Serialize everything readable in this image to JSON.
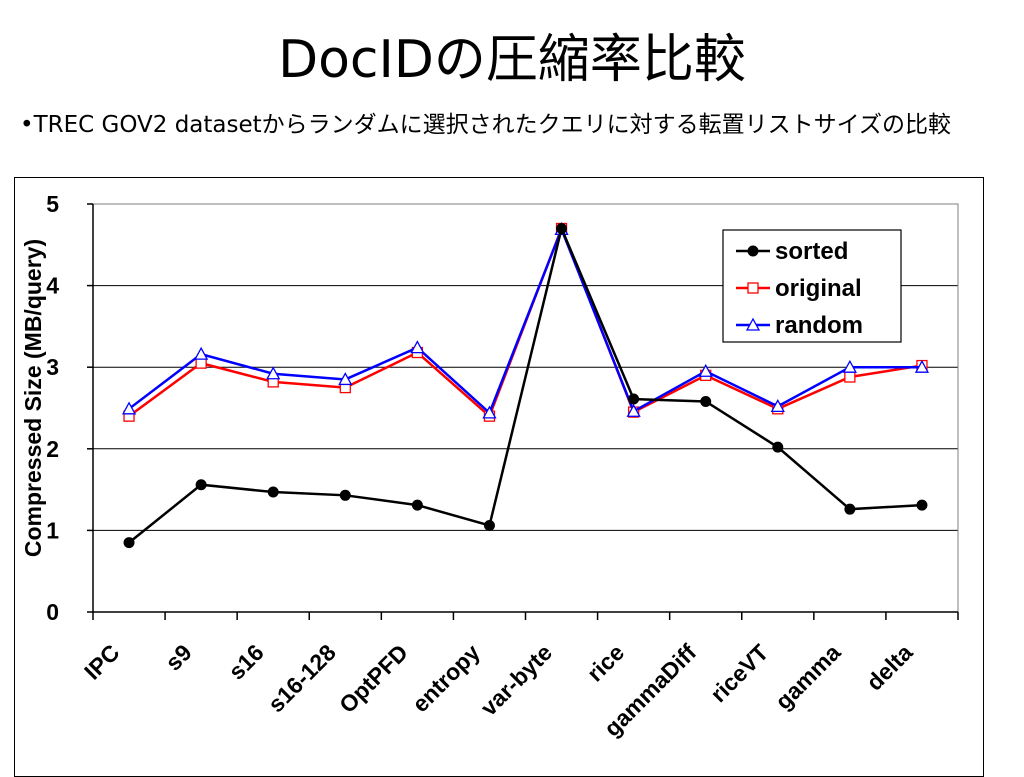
{
  "slide": {
    "title": "DocIDの圧縮率比較",
    "bullet": "•TREC GOV2 datasetからランダムに選択されたクエリに対する転置リストサイズの比較"
  },
  "chart_data": {
    "type": "line",
    "ylabel": "Compressed Size (MB/query)",
    "xlabel": "",
    "ylim": [
      0,
      5
    ],
    "yticks": [
      0,
      1,
      2,
      3,
      4,
      5
    ],
    "grid": true,
    "legend_position": "top-right",
    "categories": [
      "IPC",
      "s9",
      "s16",
      "s16-128",
      "OptPFD",
      "entropy",
      "var-byte",
      "rice",
      "gammaDiff",
      "riceVT",
      "gamma",
      "delta"
    ],
    "series": [
      {
        "name": "sorted",
        "color": "#000000",
        "marker": "filled-circle",
        "values": [
          0.85,
          1.56,
          1.47,
          1.43,
          1.31,
          1.06,
          4.7,
          2.61,
          2.58,
          2.02,
          1.26,
          1.31
        ]
      },
      {
        "name": "original",
        "color": "#ff0000",
        "marker": "hollow-square",
        "values": [
          2.4,
          3.05,
          2.82,
          2.75,
          3.18,
          2.4,
          4.7,
          2.45,
          2.9,
          2.49,
          2.88,
          3.02
        ]
      },
      {
        "name": "random",
        "color": "#0000ff",
        "marker": "hollow-triangle",
        "values": [
          2.49,
          3.16,
          2.92,
          2.85,
          3.24,
          2.44,
          4.69,
          2.46,
          2.95,
          2.52,
          3.0,
          3.0
        ]
      }
    ]
  }
}
